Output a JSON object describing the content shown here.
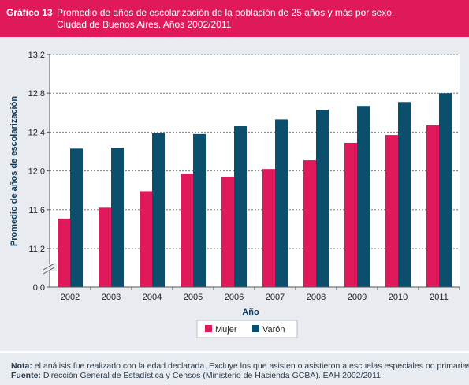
{
  "header": {
    "label": "Gráfico 13",
    "title_line1": "Promedio de años de escolarización de la población de 25 años y más por sexo.",
    "title_line2": "Ciudad de Buenos Aires. Años 2002/2011",
    "color": "#e0195a"
  },
  "footer": {
    "nota_key": "Nota:",
    "nota_text": " el análisis fue realizado con la edad declarada. Excluye los que asisten o asistieron a escuelas especiales no primarias.",
    "fuente_key": "Fuente:",
    "fuente_text": " Dirección General de Estadística y Censos (Ministerio de Hacienda GCBA). EAH 2002/2011."
  },
  "chart_data": {
    "type": "bar",
    "title": "",
    "xlabel": "Año",
    "ylabel": "Promedio de años de escolarización",
    "categories": [
      "2002",
      "2003",
      "2004",
      "2005",
      "2006",
      "2007",
      "2008",
      "2009",
      "2010",
      "2011"
    ],
    "series": [
      {
        "name": "Mujer",
        "color": "#e0195a",
        "values": [
          11.51,
          11.62,
          11.79,
          11.97,
          11.94,
          12.02,
          12.11,
          12.29,
          12.37,
          12.47
        ]
      },
      {
        "name": "Varón",
        "color": "#0b4f6c",
        "values": [
          12.23,
          12.24,
          12.39,
          12.38,
          12.46,
          12.53,
          12.63,
          12.67,
          12.71,
          12.8
        ]
      }
    ],
    "ylim": [
      11.0,
      13.2
    ],
    "axis_break": true,
    "yticks": [
      "13,2",
      "12,8",
      "12,4",
      "12,0",
      "11,6",
      "11,2",
      "0,0"
    ],
    "grid": true,
    "legend_position": "bottom"
  }
}
